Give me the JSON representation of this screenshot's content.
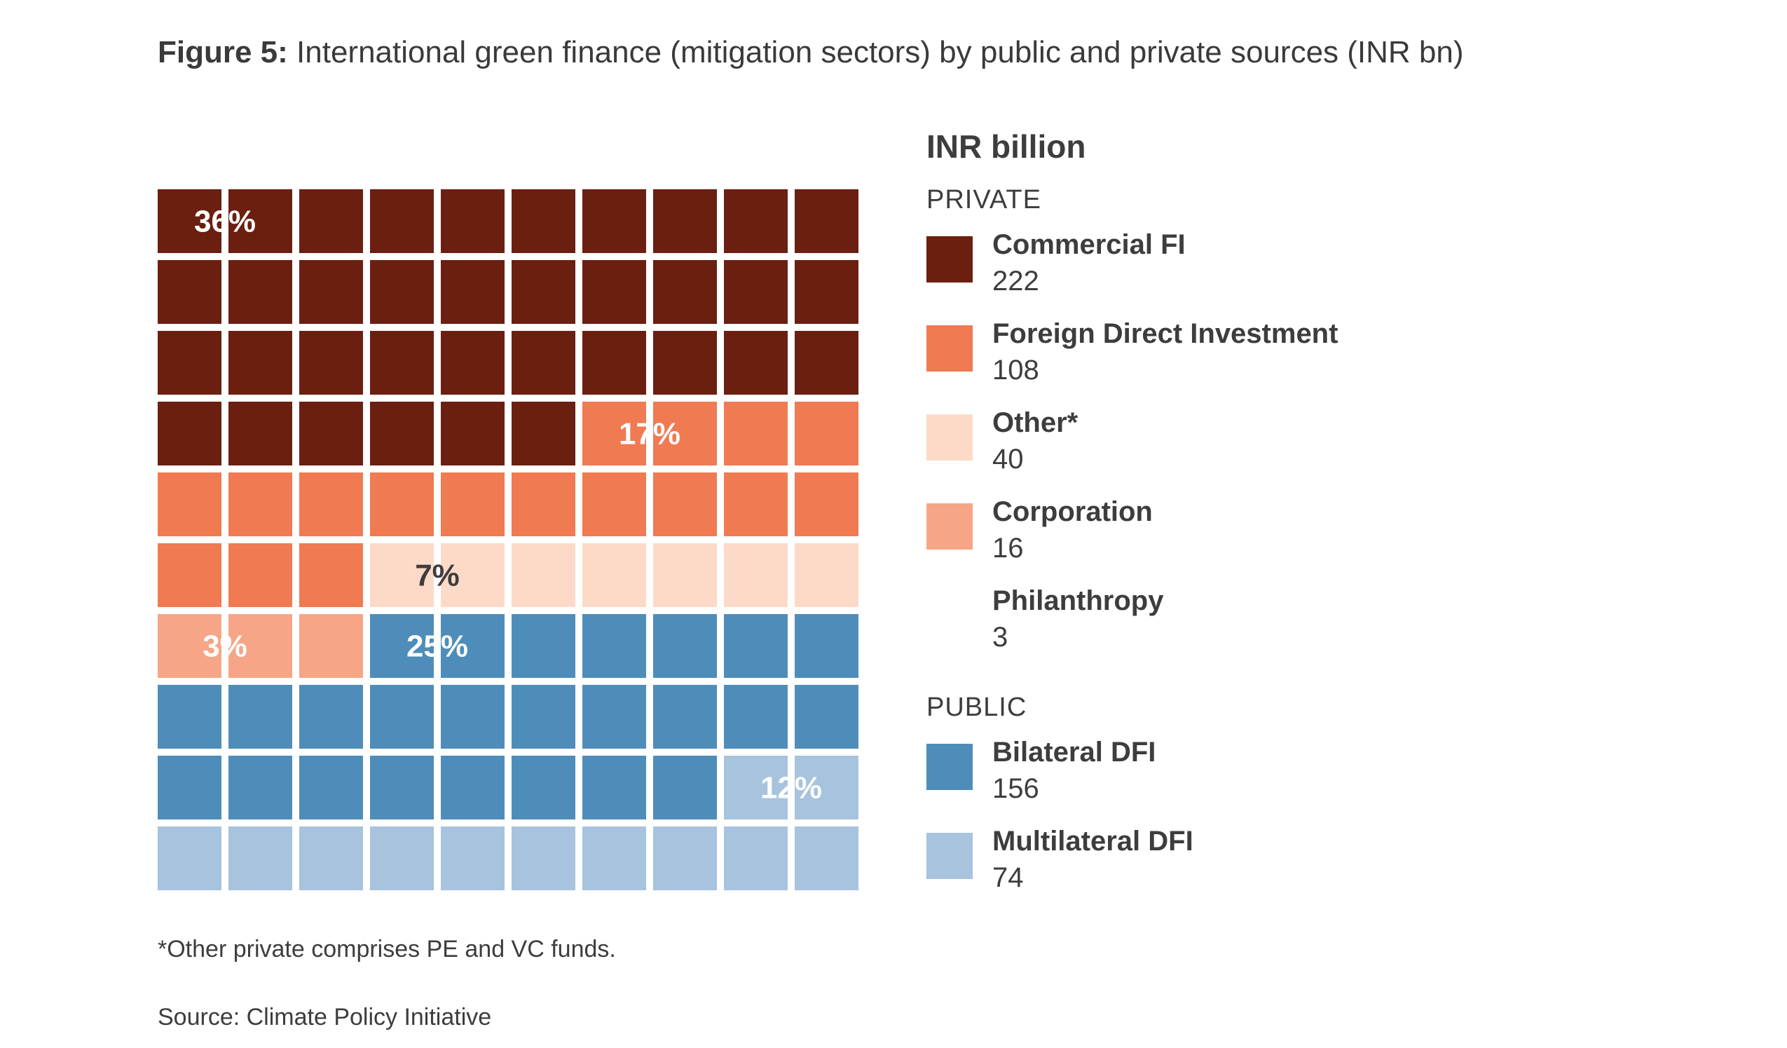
{
  "title": {
    "prefix": "Figure 5:",
    "text": "International green finance (mitigation sectors) by public and private sources (INR bn)"
  },
  "legend": {
    "unit": "INR billion",
    "private_label": "PRIVATE",
    "public_label": "PUBLIC"
  },
  "footnote": "*Other private comprises PE and VC funds.",
  "source": "Source: Climate Policy Initiative",
  "chart_data": {
    "type": "waffle",
    "title": "International green finance (mitigation sectors) by public and private sources (INR bn)",
    "unit": "INR billion",
    "grid": {
      "rows": 10,
      "cols": 10
    },
    "series": [
      {
        "name": "Commercial FI",
        "group": "PRIVATE",
        "value": 222,
        "squares": 36,
        "percent_label": "36%",
        "color": "#6b1f11",
        "label_color": "#ffffff"
      },
      {
        "name": "Foreign Direct Investment",
        "group": "PRIVATE",
        "value": 108,
        "squares": 17,
        "percent_label": "17%",
        "color": "#f07a52",
        "label_color": "#ffffff"
      },
      {
        "name": "Other*",
        "group": "PRIVATE",
        "value": 40,
        "squares": 7,
        "percent_label": "7%",
        "color": "#fddac8",
        "label_color": "#3d3d3d"
      },
      {
        "name": "Corporation",
        "group": "PRIVATE",
        "value": 16,
        "squares": 3,
        "percent_label": "3%",
        "color": "#f6a686",
        "label_color": "#ffffff"
      },
      {
        "name": "Philanthropy",
        "group": "PRIVATE",
        "value": 3,
        "squares": 0,
        "percent_label": "",
        "color": "#ffffff",
        "label_color": "#3d3d3d"
      },
      {
        "name": "Bilateral DFI",
        "group": "PUBLIC",
        "value": 156,
        "squares": 25,
        "percent_label": "25%",
        "color": "#4e8db9",
        "label_color": "#ffffff"
      },
      {
        "name": "Multilateral DFI",
        "group": "PUBLIC",
        "value": 74,
        "squares": 12,
        "percent_label": "12%",
        "color": "#a7c3dd",
        "label_color": "#ffffff"
      }
    ]
  }
}
